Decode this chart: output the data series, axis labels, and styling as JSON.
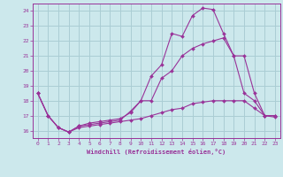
{
  "background_color": "#cce8ec",
  "grid_color": "#aacdd4",
  "line_color": "#993399",
  "xlabel": "Windchill (Refroidissement éolien,°C)",
  "ylim": [
    15.5,
    24.5
  ],
  "xlim": [
    -0.5,
    23.5
  ],
  "yticks": [
    16,
    17,
    18,
    19,
    20,
    21,
    22,
    23,
    24
  ],
  "xticks": [
    0,
    1,
    2,
    3,
    4,
    5,
    6,
    7,
    8,
    9,
    10,
    11,
    12,
    13,
    14,
    15,
    16,
    17,
    18,
    19,
    20,
    21,
    22,
    23
  ],
  "line1_x": [
    0,
    1,
    2,
    3,
    4,
    5,
    6,
    7,
    8,
    9,
    10,
    11,
    12,
    13,
    14,
    15,
    16,
    17,
    18,
    19,
    20,
    21,
    22,
    23
  ],
  "line1_y": [
    18.5,
    17.0,
    16.2,
    15.9,
    16.3,
    16.4,
    16.5,
    16.6,
    16.7,
    17.3,
    18.0,
    19.65,
    20.4,
    22.5,
    22.3,
    23.7,
    24.2,
    24.1,
    22.5,
    21.0,
    18.5,
    18.0,
    17.0,
    17.0
  ],
  "line2_x": [
    0,
    1,
    2,
    3,
    4,
    5,
    6,
    7,
    8,
    9,
    10,
    11,
    12,
    13,
    14,
    15,
    16,
    17,
    18,
    19,
    20,
    21,
    22,
    23
  ],
  "line2_y": [
    18.5,
    17.0,
    16.2,
    15.9,
    16.3,
    16.5,
    16.6,
    16.7,
    16.8,
    17.2,
    18.0,
    18.0,
    19.5,
    20.0,
    21.0,
    21.5,
    21.8,
    22.0,
    22.2,
    21.0,
    21.0,
    18.5,
    17.0,
    17.0
  ],
  "line3_x": [
    0,
    1,
    2,
    3,
    4,
    5,
    6,
    7,
    8,
    9,
    10,
    11,
    12,
    13,
    14,
    15,
    16,
    17,
    18,
    19,
    20,
    21,
    22,
    23
  ],
  "line3_y": [
    18.5,
    17.0,
    16.2,
    15.9,
    16.2,
    16.3,
    16.4,
    16.5,
    16.6,
    16.7,
    16.8,
    17.0,
    17.2,
    17.4,
    17.5,
    17.8,
    17.9,
    18.0,
    18.0,
    18.0,
    18.0,
    17.5,
    17.0,
    16.9
  ]
}
